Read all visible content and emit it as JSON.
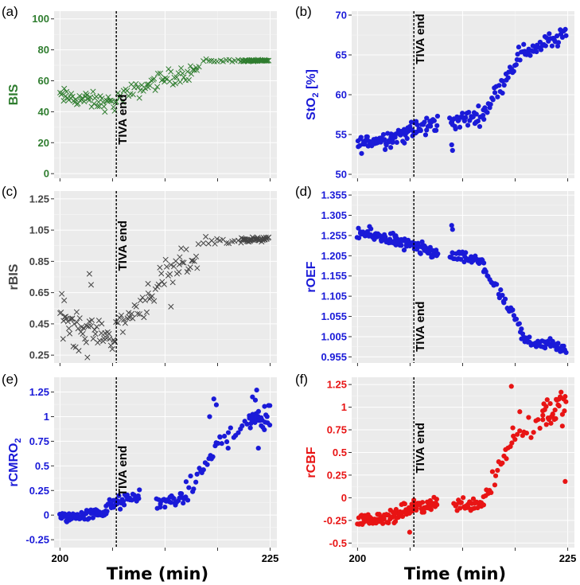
{
  "x_axis": {
    "title": "Time (min)",
    "tick_labels": [
      "200",
      "225"
    ],
    "xlim": [
      199.3,
      225.8
    ]
  },
  "marker_line": {
    "x": 206.7,
    "label": "TIVA end"
  },
  "chart_data": [
    {
      "id": "a",
      "panel_label": "(a)",
      "type": "scatter",
      "marker": "x",
      "ylabel": "BIS",
      "ylabel_sub": "",
      "color": "#2f7d2f",
      "ylim": [
        -3,
        105
      ],
      "ytick_values": [
        0,
        20,
        40,
        60,
        80,
        100
      ],
      "ytick_labels": [
        "0",
        "20",
        "40",
        "60",
        "80",
        "100"
      ],
      "annot_y": 35,
      "segments": [
        {
          "x0": 200.0,
          "x1": 206.6,
          "y0": 50,
          "y1": 45,
          "noise": 4,
          "n": 50
        },
        {
          "x0": 206.7,
          "x1": 210.5,
          "y0": 48,
          "y1": 57,
          "noise": 4,
          "n": 22
        },
        {
          "x0": 210.5,
          "x1": 216.5,
          "y0": 58,
          "y1": 68,
          "noise": 4,
          "n": 36
        },
        {
          "x0": 217.0,
          "x1": 221.5,
          "y0": 73,
          "y1": 73,
          "noise": 0.8,
          "n": 14
        },
        {
          "x0": 221.6,
          "x1": 224.8,
          "y0": 73,
          "y1": 73,
          "noise": 0.4,
          "n": 40
        }
      ]
    },
    {
      "id": "b",
      "panel_label": "(b)",
      "type": "scatter",
      "marker": "dot",
      "ylabel": "StO",
      "ylabel_sub": "2",
      "ylabel_suffix": " [%]",
      "color": "#1a1ad8",
      "ylim": [
        49.5,
        70.5
      ],
      "ytick_values": [
        50,
        55,
        60,
        65,
        70
      ],
      "ytick_labels": [
        "50",
        "55",
        "60",
        "65",
        "70"
      ],
      "annot_y": 67,
      "segments": [
        {
          "x0": 200.0,
          "x1": 204.0,
          "y0": 53.8,
          "y1": 54.6,
          "noise": 0.8,
          "n": 40
        },
        {
          "x0": 204.0,
          "x1": 209.5,
          "y0": 54.6,
          "y1": 56.5,
          "noise": 0.9,
          "n": 55
        },
        {
          "x0": 211.0,
          "x1": 215.0,
          "y0": 56.5,
          "y1": 57.5,
          "noise": 0.8,
          "n": 35
        },
        {
          "x0": 215.0,
          "x1": 219.0,
          "y0": 57.8,
          "y1": 64.5,
          "noise": 0.8,
          "n": 30
        },
        {
          "x0": 219.0,
          "x1": 224.8,
          "y0": 65.0,
          "y1": 67.5,
          "noise": 0.8,
          "n": 42
        }
      ],
      "points": [
        [
          211.2,
          53.7
        ],
        [
          211.3,
          53.0
        ]
      ]
    },
    {
      "id": "c",
      "panel_label": "(c)",
      "type": "scatter",
      "marker": "x",
      "ylabel": "rBIS",
      "ylabel_sub": "",
      "color": "#444444",
      "ylim": [
        0.2,
        1.3
      ],
      "ytick_values": [
        0.25,
        0.45,
        0.65,
        0.85,
        1.05,
        1.25
      ],
      "ytick_labels": [
        "0.25",
        "0.45",
        "0.65",
        "0.85",
        "1.05",
        "1.25"
      ],
      "annot_y": 0.95,
      "segments": [
        {
          "x0": 200.0,
          "x1": 203.3,
          "y0": 0.52,
          "y1": 0.38,
          "noise": 0.1,
          "n": 30
        },
        {
          "x0": 203.4,
          "x1": 206.6,
          "y0": 0.42,
          "y1": 0.35,
          "noise": 0.05,
          "n": 25
        },
        {
          "x0": 206.7,
          "x1": 210.5,
          "y0": 0.42,
          "y1": 0.62,
          "noise": 0.07,
          "n": 22
        },
        {
          "x0": 210.5,
          "x1": 216.5,
          "y0": 0.65,
          "y1": 0.9,
          "noise": 0.08,
          "n": 36
        },
        {
          "x0": 217.0,
          "x1": 221.5,
          "y0": 0.98,
          "y1": 0.98,
          "noise": 0.02,
          "n": 14
        },
        {
          "x0": 221.6,
          "x1": 224.8,
          "y0": 0.99,
          "y1": 0.99,
          "noise": 0.01,
          "n": 40
        }
      ],
      "points": [
        [
          203.5,
          0.77
        ],
        [
          203.7,
          0.7
        ],
        [
          200.5,
          0.6
        ],
        [
          213.2,
          0.56
        ],
        [
          214.2,
          0.83
        ]
      ]
    },
    {
      "id": "d",
      "panel_label": "(d)",
      "type": "scatter",
      "marker": "dot",
      "ylabel": "rOEF",
      "ylabel_sub": "",
      "color": "#1a1ad8",
      "ylim": [
        0.94,
        1.365
      ],
      "ytick_values": [
        0.955,
        1.005,
        1.055,
        1.105,
        1.155,
        1.205,
        1.255,
        1.305,
        1.355
      ],
      "ytick_labels": [
        "0.955",
        "1.005",
        "1.055",
        "1.105",
        "1.155",
        "1.205",
        "1.255",
        "1.305",
        "1.355"
      ],
      "annot_y": 1.03,
      "segments": [
        {
          "x0": 200.0,
          "x1": 204.5,
          "y0": 1.262,
          "y1": 1.245,
          "noise": 0.012,
          "n": 45
        },
        {
          "x0": 204.5,
          "x1": 209.5,
          "y0": 1.24,
          "y1": 1.21,
          "noise": 0.012,
          "n": 55
        },
        {
          "x0": 211.0,
          "x1": 215.0,
          "y0": 1.205,
          "y1": 1.19,
          "noise": 0.01,
          "n": 35
        },
        {
          "x0": 215.0,
          "x1": 219.5,
          "y0": 1.175,
          "y1": 1.02,
          "noise": 0.012,
          "n": 32
        },
        {
          "x0": 219.5,
          "x1": 224.8,
          "y0": 1.0,
          "y1": 0.975,
          "noise": 0.012,
          "n": 42
        }
      ],
      "points": [
        [
          211.2,
          1.28
        ],
        [
          211.3,
          1.27
        ]
      ]
    },
    {
      "id": "e",
      "panel_label": "(e)",
      "type": "scatter",
      "marker": "dot",
      "ylabel": "rCMRO",
      "ylabel_sub": "2",
      "color": "#1a1ad8",
      "ylim": [
        -0.33,
        1.4
      ],
      "ytick_values": [
        -0.25,
        0,
        0.25,
        0.5,
        0.75,
        1,
        1.25
      ],
      "ytick_labels": [
        "-0.25",
        "0",
        "0.25",
        "0.5",
        "0.75",
        "1",
        "1.25"
      ],
      "annot_y": 0.45,
      "segments": [
        {
          "x0": 200.0,
          "x1": 205.5,
          "y0": -0.03,
          "y1": 0.03,
          "noise": 0.04,
          "n": 60
        },
        {
          "x0": 205.5,
          "x1": 209.5,
          "y0": 0.08,
          "y1": 0.2,
          "noise": 0.05,
          "n": 40
        },
        {
          "x0": 211.5,
          "x1": 215.0,
          "y0": 0.12,
          "y1": 0.18,
          "noise": 0.05,
          "n": 30
        },
        {
          "x0": 215.0,
          "x1": 219.0,
          "y0": 0.2,
          "y1": 0.75,
          "noise": 0.08,
          "n": 22
        },
        {
          "x0": 219.0,
          "x1": 222.5,
          "y0": 0.75,
          "y1": 0.95,
          "noise": 0.08,
          "n": 14
        },
        {
          "x0": 222.5,
          "x1": 225.0,
          "y0": 0.95,
          "y1": 1.0,
          "noise": 0.12,
          "n": 28
        }
      ],
      "points": [
        [
          218.3,
          1.18
        ],
        [
          218.6,
          1.12
        ],
        [
          217.8,
          1.0
        ],
        [
          223.4,
          1.27
        ],
        [
          222.9,
          1.2
        ],
        [
          223.6,
          0.68
        ],
        [
          220.0,
          0.68
        ]
      ]
    },
    {
      "id": "f",
      "panel_label": "(f)",
      "type": "scatter",
      "marker": "dot",
      "ylabel": "rCBF",
      "ylabel_sub": "",
      "color": "#e81414",
      "ylim": [
        -0.55,
        1.33
      ],
      "ytick_values": [
        -0.5,
        -0.25,
        0,
        0.25,
        0.5,
        0.75,
        1,
        1.25
      ],
      "ytick_labels": [
        "-0.5",
        "-0.25",
        "0",
        "0.25",
        "0.5",
        "0.75",
        "1",
        "1.25"
      ],
      "annot_y": 0.55,
      "segments": [
        {
          "x0": 200.0,
          "x1": 205.0,
          "y0": -0.25,
          "y1": -0.2,
          "noise": 0.05,
          "n": 60
        },
        {
          "x0": 205.0,
          "x1": 209.5,
          "y0": -0.15,
          "y1": -0.05,
          "noise": 0.06,
          "n": 45
        },
        {
          "x0": 211.5,
          "x1": 215.0,
          "y0": -0.08,
          "y1": -0.05,
          "noise": 0.06,
          "n": 32
        },
        {
          "x0": 215.0,
          "x1": 218.5,
          "y0": 0.0,
          "y1": 0.65,
          "noise": 0.1,
          "n": 20
        },
        {
          "x0": 218.5,
          "x1": 222.0,
          "y0": 0.7,
          "y1": 0.85,
          "noise": 0.12,
          "n": 14
        },
        {
          "x0": 222.0,
          "x1": 224.8,
          "y0": 0.95,
          "y1": 1.0,
          "noise": 0.14,
          "n": 30
        }
      ],
      "points": [
        [
          218.3,
          1.23
        ],
        [
          224.7,
          0.18
        ],
        [
          219.3,
          0.95
        ],
        [
          206.2,
          -0.38
        ]
      ]
    }
  ]
}
